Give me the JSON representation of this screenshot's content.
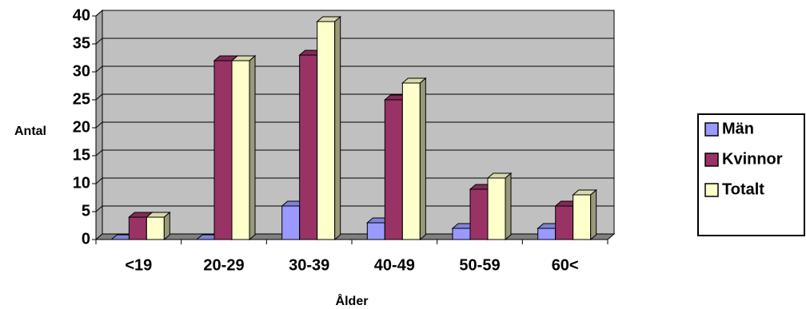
{
  "chart_data": {
    "type": "bar",
    "categories": [
      "<19",
      "20-29",
      "30-39",
      "40-49",
      "50-59",
      "60<"
    ],
    "series": [
      {
        "name": "Män",
        "values": [
          0,
          0,
          6,
          3,
          2,
          2
        ],
        "color": "#9999ff"
      },
      {
        "name": "Kvinnor",
        "values": [
          4,
          32,
          33,
          25,
          9,
          6
        ],
        "color": "#993366"
      },
      {
        "name": "Totalt",
        "values": [
          4,
          32,
          39,
          28,
          11,
          8
        ],
        "color": "#ffffcc"
      }
    ],
    "xlabel": "Ålder",
    "ylabel": "Antal",
    "ylim": [
      0,
      40
    ],
    "yticks": [
      "0",
      "5",
      "10",
      "15",
      "20",
      "25",
      "30",
      "35",
      "40"
    ],
    "grid": true,
    "legend_position": "right",
    "style": "3d-clustered-column",
    "plot_background": "#c0c0c0"
  }
}
